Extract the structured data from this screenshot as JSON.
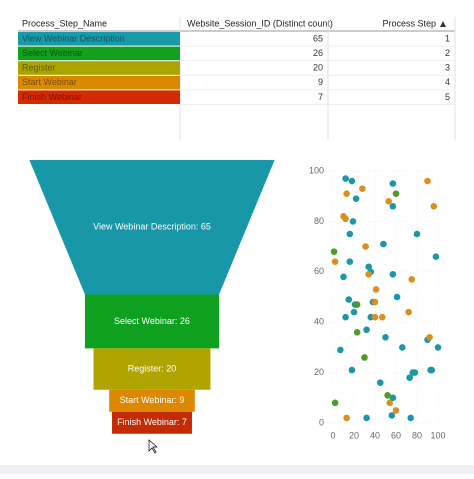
{
  "table": {
    "columns": [
      "Process_Step_Name",
      "Website_Session_ID (Distinct count)",
      "Process Step"
    ],
    "rows": [
      [
        "View Webinar Description",
        65,
        1
      ],
      [
        "Select Webinar",
        26,
        2
      ],
      [
        "Register",
        20,
        3
      ],
      [
        "Start Webinar",
        9,
        4
      ],
      [
        "Finish Webinar",
        7,
        5
      ]
    ],
    "row_colors": [
      "#1a9aa8",
      "#12a01e",
      "#aaa300",
      "#d98a00",
      "#d42a00"
    ]
  },
  "chart_data": [
    {
      "type": "funnel",
      "categories": [
        "View Webinar Description",
        "Select Webinar",
        "Register",
        "Start Webinar",
        "Finish Webinar"
      ],
      "values": [
        65,
        26,
        20,
        9,
        7
      ],
      "value_labels": [
        "View Webinar Description: 65",
        "Select Webinar: 26",
        "Register: 20",
        "Start Webinar: 9",
        "Finish Webinar: 7"
      ],
      "colors": [
        "#1897a8",
        "#0fa020",
        "#b0a400",
        "#dc8800",
        "#c32b05"
      ]
    },
    {
      "type": "scatter",
      "xlim": [
        0,
        100
      ],
      "ylim": [
        0,
        100
      ],
      "xticks": [
        0,
        20,
        40,
        60,
        80,
        100
      ],
      "yticks": [
        0,
        20,
        40,
        60,
        80,
        100
      ],
      "grid": true,
      "series": [
        {
          "color": "#1b98a8",
          "x": [
            12,
            18,
            22,
            19,
            57,
            57,
            80,
            48,
            16,
            10,
            16,
            34,
            36,
            57,
            61,
            15,
            21,
            38,
            12,
            20,
            36,
            90,
            94,
            100,
            98,
            32,
            66,
            7,
            50,
            18,
            45,
            57,
            56,
            73,
            76,
            78,
            32,
            74,
            93
          ],
          "values": [
            97,
            96,
            89,
            80,
            95,
            86,
            75,
            71,
            75,
            58,
            64,
            62,
            60,
            59,
            50,
            49,
            47,
            48,
            42,
            44,
            42,
            33,
            21,
            30,
            66,
            37,
            30,
            29,
            34,
            21,
            16,
            10,
            3,
            18,
            20,
            20,
            2,
            2,
            21
          ]
        },
        {
          "color": "#d9901e",
          "x": [
            13,
            28,
            10,
            12,
            53,
            90,
            96,
            31,
            2,
            34,
            75,
            41,
            40,
            40,
            47,
            72,
            92,
            54,
            60,
            13
          ],
          "values": [
            91,
            93,
            82,
            81,
            88,
            96,
            86,
            70,
            64,
            59,
            57,
            53,
            48,
            42,
            42,
            44,
            34,
            8,
            5,
            2
          ]
        },
        {
          "color": "#4c9b2b",
          "x": [
            60,
            1,
            23,
            23,
            30,
            52,
            2
          ],
          "values": [
            91,
            68,
            47,
            36,
            26,
            11,
            8
          ]
        }
      ]
    }
  ]
}
